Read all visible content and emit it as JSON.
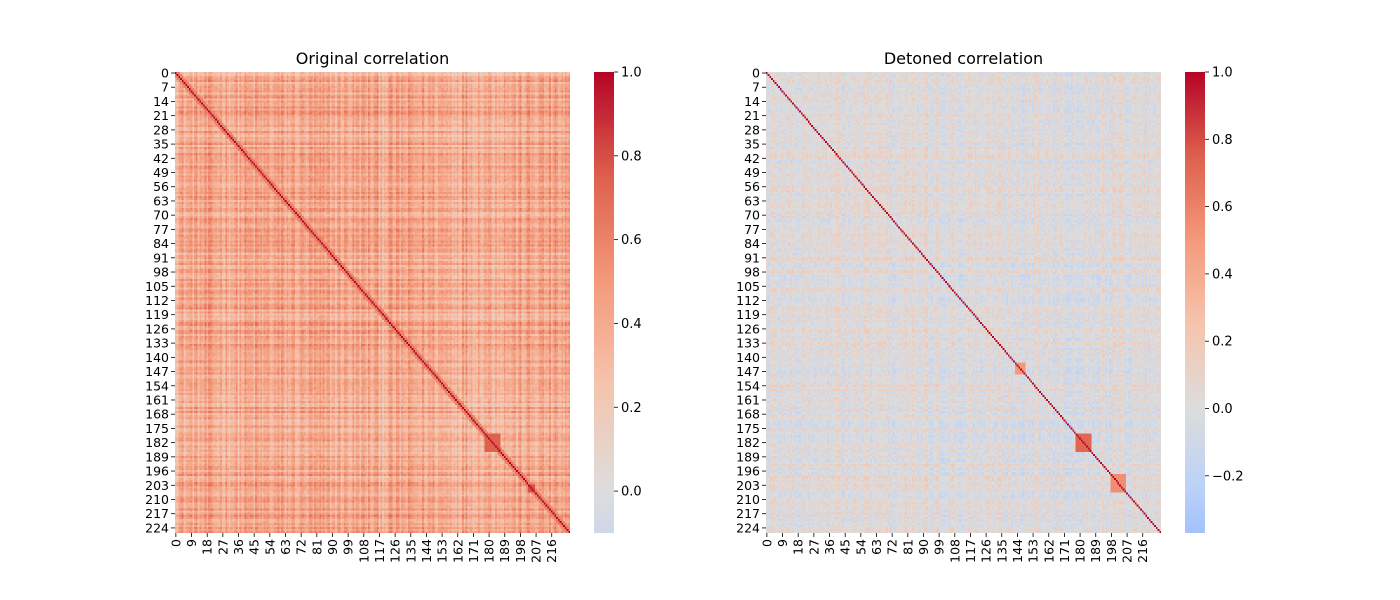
{
  "chart_data": [
    {
      "type": "heatmap",
      "title": "Original correlation",
      "size": 227,
      "x_tick_labels": [
        "0",
        "9",
        "18",
        "27",
        "36",
        "45",
        "54",
        "63",
        "72",
        "81",
        "90",
        "99",
        "108",
        "117",
        "126",
        "135",
        "144",
        "153",
        "162",
        "171",
        "180",
        "189",
        "198",
        "207",
        "216"
      ],
      "y_tick_labels": [
        "0",
        "7",
        "14",
        "21",
        "28",
        "35",
        "42",
        "49",
        "56",
        "63",
        "70",
        "77",
        "84",
        "91",
        "98",
        "105",
        "112",
        "119",
        "126",
        "133",
        "140",
        "147",
        "154",
        "161",
        "168",
        "175",
        "182",
        "189",
        "196",
        "203",
        "210",
        "217",
        "224"
      ],
      "colorbar": {
        "min": -0.1,
        "max": 1.0,
        "center": 0.0,
        "ticks": [
          "0.0",
          "0.2",
          "0.4",
          "0.6",
          "0.8",
          "1.0"
        ]
      },
      "colormap": "coolwarm",
      "diagonal_value": 1.0,
      "typical_offdiagonal_range": [
        0.15,
        0.65
      ],
      "high_correlation_blocks": [
        [
          178,
          186
        ],
        [
          203,
          206
        ]
      ]
    },
    {
      "type": "heatmap",
      "title": "Detoned correlation",
      "size": 227,
      "x_tick_labels": [
        "0",
        "9",
        "18",
        "27",
        "36",
        "45",
        "54",
        "63",
        "72",
        "81",
        "90",
        "99",
        "108",
        "117",
        "126",
        "135",
        "144",
        "153",
        "162",
        "171",
        "180",
        "189",
        "198",
        "207",
        "216"
      ],
      "y_tick_labels": [
        "0",
        "7",
        "14",
        "21",
        "28",
        "35",
        "42",
        "49",
        "56",
        "63",
        "70",
        "77",
        "84",
        "91",
        "98",
        "105",
        "112",
        "119",
        "126",
        "133",
        "140",
        "147",
        "154",
        "161",
        "168",
        "175",
        "182",
        "189",
        "196",
        "203",
        "210",
        "217",
        "224"
      ],
      "colorbar": {
        "min": -0.37,
        "max": 1.0,
        "center": 0.0,
        "ticks": [
          "−0.2",
          "0.0",
          "0.2",
          "0.4",
          "0.6",
          "0.8",
          "1.0"
        ]
      },
      "colormap": "coolwarm",
      "diagonal_value": 1.0,
      "typical_offdiagonal_range": [
        -0.25,
        0.3
      ],
      "high_correlation_blocks": [
        [
          178,
          186
        ],
        [
          198,
          206
        ]
      ]
    }
  ],
  "colors": {
    "cold": "#3b4cc0",
    "neutral": "#dddddd",
    "warm": "#b40426"
  }
}
